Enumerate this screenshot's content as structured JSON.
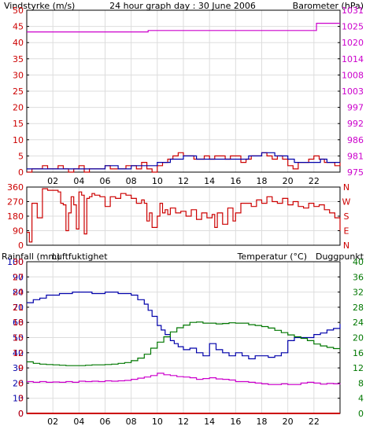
{
  "colors": {
    "red": "#cc0000",
    "blue": "#0000aa",
    "magenta": "#cc00cc",
    "green": "#007700",
    "black": "#000000",
    "grid": "#dddddd"
  },
  "x_ticks": [
    "02",
    "04",
    "06",
    "08",
    "10",
    "12",
    "14",
    "16",
    "18",
    "20",
    "22"
  ],
  "chart_data": [
    {
      "type": "line",
      "title": "24 hour graph day : 30 June 2006",
      "ylabel_left": "Vindstyrke (m/s)",
      "ylabel_right": "Barometer (hPa)",
      "y_left_ticks": [
        "0",
        "5",
        "10",
        "15",
        "20",
        "25",
        "30",
        "35",
        "40",
        "45",
        "50"
      ],
      "y_right_ticks": [
        "975",
        "981",
        "986",
        "992",
        "997",
        "1003",
        "1008",
        "1014",
        "1020",
        "1025",
        "1031"
      ],
      "ylim_left": [
        0,
        50
      ],
      "ylim_right": [
        975,
        1031
      ],
      "grid": true,
      "series": [
        {
          "axis": "right",
          "step": true,
          "color": "magenta",
          "x": [
            0,
            9.3,
            9.3,
            22.2,
            22.2,
            24
          ],
          "values": [
            1023.5,
            1023.5,
            1024.0,
            1024.0,
            1026.5,
            1026.5
          ]
        },
        {
          "axis": "left",
          "step": true,
          "color": "red",
          "x": [
            0,
            0.4,
            0.8,
            1.2,
            1.6,
            2,
            2.4,
            2.8,
            3.2,
            3.6,
            4,
            4.4,
            4.8,
            5.2,
            5.6,
            6,
            6.4,
            6.8,
            7.2,
            7.6,
            8,
            8.4,
            8.8,
            9.2,
            9.6,
            10,
            10.4,
            10.8,
            11.2,
            11.6,
            12,
            12.4,
            12.8,
            13.2,
            13.6,
            14,
            14.4,
            14.8,
            15.2,
            15.6,
            16,
            16.4,
            16.8,
            17.2,
            17.6,
            18,
            18.4,
            18.8,
            19.2,
            19.6,
            20,
            20.4,
            20.8,
            21.2,
            21.6,
            22,
            22.4,
            22.8,
            23.2,
            23.6,
            24
          ],
          "values": [
            0,
            1,
            1,
            2,
            1,
            1,
            2,
            1,
            0,
            1,
            2,
            0,
            1,
            1,
            1,
            2,
            1,
            1,
            1,
            2,
            2,
            1,
            3,
            1,
            0,
            2,
            3,
            4,
            5,
            6,
            5,
            5,
            4,
            4,
            5,
            4,
            5,
            5,
            4,
            5,
            5,
            3,
            4,
            5,
            5,
            6,
            5,
            4,
            5,
            4,
            2,
            1,
            3,
            3,
            4,
            5,
            4,
            3,
            3,
            2,
            3
          ]
        },
        {
          "axis": "left",
          "step": true,
          "color": "blue",
          "x": [
            0,
            0.5,
            1,
            1.5,
            2,
            2.5,
            3,
            3.5,
            4,
            4.5,
            5,
            5.5,
            6,
            6.5,
            7,
            7.5,
            8,
            8.5,
            9,
            9.5,
            10,
            10.5,
            11,
            11.5,
            12,
            12.5,
            13,
            13.5,
            14,
            14.5,
            15,
            15.5,
            16,
            16.5,
            17,
            17.5,
            18,
            18.5,
            19,
            19.5,
            20,
            20.5,
            21,
            21.5,
            22,
            22.5,
            23,
            23.5,
            24
          ],
          "values": [
            1,
            1,
            1,
            1,
            1,
            1,
            1,
            1,
            1,
            1,
            1,
            1,
            2,
            2,
            1,
            1,
            2,
            2,
            2,
            2,
            3,
            3,
            4,
            4,
            5,
            5,
            4,
            4,
            4,
            4,
            4,
            4,
            4,
            4,
            5,
            5,
            6,
            6,
            5,
            5,
            4,
            3,
            3,
            3,
            3,
            4,
            3,
            3,
            3
          ]
        }
      ]
    },
    {
      "type": "line",
      "ylabel_left": "",
      "y_left_ticks": [
        "0",
        "90",
        "180",
        "270",
        "360"
      ],
      "y_right_ticks": [
        "N",
        "E",
        "S",
        "W",
        "N"
      ],
      "ylim_left": [
        0,
        360
      ],
      "grid": true,
      "series": [
        {
          "axis": "left",
          "step": true,
          "color": "red",
          "x": [
            0,
            0.2,
            0.4,
            0.8,
            1.2,
            1.6,
            2.0,
            2.4,
            2.6,
            2.8,
            3.0,
            3.2,
            3.4,
            3.6,
            3.8,
            4.0,
            4.2,
            4.4,
            4.6,
            4.8,
            5.0,
            5.2,
            5.6,
            6.0,
            6.4,
            6.8,
            7.2,
            7.6,
            8.0,
            8.4,
            8.8,
            9.0,
            9.2,
            9.4,
            9.6,
            10.0,
            10.2,
            10.4,
            10.6,
            10.8,
            11.0,
            11.4,
            11.8,
            12.2,
            12.6,
            13.0,
            13.4,
            13.8,
            14.2,
            14.4,
            14.6,
            15.0,
            15.4,
            15.8,
            16.0,
            16.4,
            16.8,
            17.2,
            17.6,
            18.0,
            18.4,
            18.8,
            19.2,
            19.6,
            20.0,
            20.4,
            20.8,
            21.2,
            21.6,
            22.0,
            22.4,
            22.8,
            23.2,
            23.6,
            24
          ],
          "values": [
            80,
            20,
            260,
            170,
            350,
            340,
            340,
            330,
            260,
            250,
            90,
            200,
            300,
            250,
            100,
            330,
            310,
            70,
            290,
            300,
            320,
            310,
            300,
            240,
            300,
            290,
            320,
            310,
            290,
            260,
            280,
            260,
            150,
            200,
            110,
            180,
            260,
            200,
            220,
            190,
            230,
            200,
            210,
            180,
            220,
            160,
            200,
            170,
            190,
            110,
            200,
            130,
            230,
            150,
            200,
            260,
            260,
            240,
            280,
            260,
            300,
            270,
            260,
            290,
            250,
            270,
            240,
            230,
            260,
            240,
            250,
            220,
            200,
            170,
            90
          ]
        }
      ]
    },
    {
      "type": "line",
      "ylabel_left": "Rainfall (mm)",
      "ylabel_left_2": "Luftfuktighet",
      "ylabel_right": "Temperatur (°C)",
      "ylabel_right_2": "Duggpunkt",
      "y_left_ticks": [
        "0",
        "10",
        "20",
        "30",
        "40",
        "50",
        "60",
        "70",
        "80",
        "90",
        "100"
      ],
      "y_left_ticks_2": [
        "0",
        "3",
        "6",
        "9",
        "12",
        "15",
        "18",
        "21",
        "24",
        "27",
        "30"
      ],
      "y_right_ticks": [
        "0",
        "4",
        "8",
        "12",
        "16",
        "20",
        "24",
        "28",
        "32",
        "36",
        "40"
      ],
      "ylim_left": [
        0,
        100
      ],
      "ylim_right": [
        0,
        40
      ],
      "grid": true,
      "series": [
        {
          "axis": "left",
          "step": true,
          "color": "blue",
          "x": [
            0,
            0.5,
            1,
            1.5,
            2,
            2.5,
            3,
            3.5,
            4,
            4.5,
            5,
            5.5,
            6,
            6.5,
            7,
            7.5,
            8,
            8.5,
            9,
            9.3,
            9.6,
            10,
            10.3,
            10.6,
            11,
            11.3,
            11.6,
            12,
            12.5,
            13,
            13.5,
            14,
            14.5,
            15,
            15.5,
            16,
            16.5,
            17,
            17.5,
            18,
            18.5,
            19,
            19.5,
            20,
            20.5,
            21,
            21.5,
            22,
            22.5,
            23,
            23.5,
            24
          ],
          "values": [
            73,
            75,
            76,
            78,
            78,
            79,
            79,
            80,
            80,
            80,
            79,
            79,
            80,
            80,
            79,
            79,
            78,
            75,
            72,
            68,
            64,
            58,
            55,
            52,
            48,
            46,
            44,
            42,
            43,
            40,
            38,
            46,
            42,
            40,
            38,
            40,
            38,
            36,
            38,
            38,
            37,
            38,
            40,
            48,
            50,
            50,
            50,
            52,
            53,
            55,
            56,
            59
          ]
        },
        {
          "axis": "right",
          "step": true,
          "color": "green",
          "x": [
            0,
            0.5,
            1,
            1.5,
            2,
            2.5,
            3,
            3.5,
            4,
            4.5,
            5,
            5.5,
            6,
            6.5,
            7,
            7.5,
            8,
            8.5,
            9,
            9.5,
            10,
            10.5,
            11,
            11.5,
            12,
            12.5,
            13,
            13.5,
            14,
            14.5,
            15,
            15.5,
            16,
            16.5,
            17,
            17.5,
            18,
            18.5,
            19,
            19.5,
            20,
            20.5,
            21,
            21.5,
            22,
            22.5,
            23,
            23.5,
            24
          ],
          "values": [
            13.6,
            13.2,
            13.0,
            12.9,
            12.8,
            12.7,
            12.6,
            12.6,
            12.6,
            12.7,
            12.8,
            12.8,
            12.9,
            13.0,
            13.2,
            13.4,
            13.9,
            14.6,
            15.6,
            17.2,
            18.8,
            20.2,
            21.5,
            22.6,
            23.3,
            24.0,
            24.1,
            23.8,
            23.8,
            23.6,
            23.7,
            23.9,
            23.8,
            23.8,
            23.4,
            23.2,
            22.9,
            22.5,
            21.9,
            21.3,
            20.7,
            20.2,
            19.8,
            19.2,
            18.3,
            17.8,
            17.4,
            17.1,
            17.0
          ]
        },
        {
          "axis": "right",
          "step": true,
          "color": "magenta",
          "x": [
            0,
            0.5,
            1,
            1.5,
            2,
            2.5,
            3,
            3.5,
            4,
            4.5,
            5,
            5.5,
            6,
            6.5,
            7,
            7.5,
            8,
            8.5,
            9,
            9.5,
            10,
            10.5,
            11,
            11.5,
            12,
            12.5,
            13,
            13.5,
            14,
            14.5,
            15,
            15.5,
            16,
            16.5,
            17,
            17.5,
            18,
            18.5,
            19,
            19.5,
            20,
            20.5,
            21,
            21.5,
            22,
            22.5,
            23,
            23.5,
            24
          ],
          "values": [
            8.4,
            8.2,
            8.4,
            8.2,
            8.3,
            8.2,
            8.4,
            8.2,
            8.5,
            8.4,
            8.5,
            8.4,
            8.6,
            8.5,
            8.6,
            8.7,
            9.0,
            9.3,
            9.6,
            10.0,
            10.6,
            10.2,
            10.0,
            9.7,
            9.6,
            9.4,
            9.0,
            9.2,
            9.4,
            9.1,
            9.0,
            8.8,
            8.4,
            8.4,
            8.2,
            8.0,
            7.8,
            7.6,
            7.6,
            7.8,
            7.6,
            7.6,
            8.0,
            8.2,
            8.0,
            7.7,
            7.9,
            7.8,
            7.9
          ]
        },
        {
          "axis": "left",
          "step": true,
          "color": "red",
          "x": [
            0,
            24
          ],
          "values": [
            0,
            0
          ]
        }
      ]
    }
  ]
}
